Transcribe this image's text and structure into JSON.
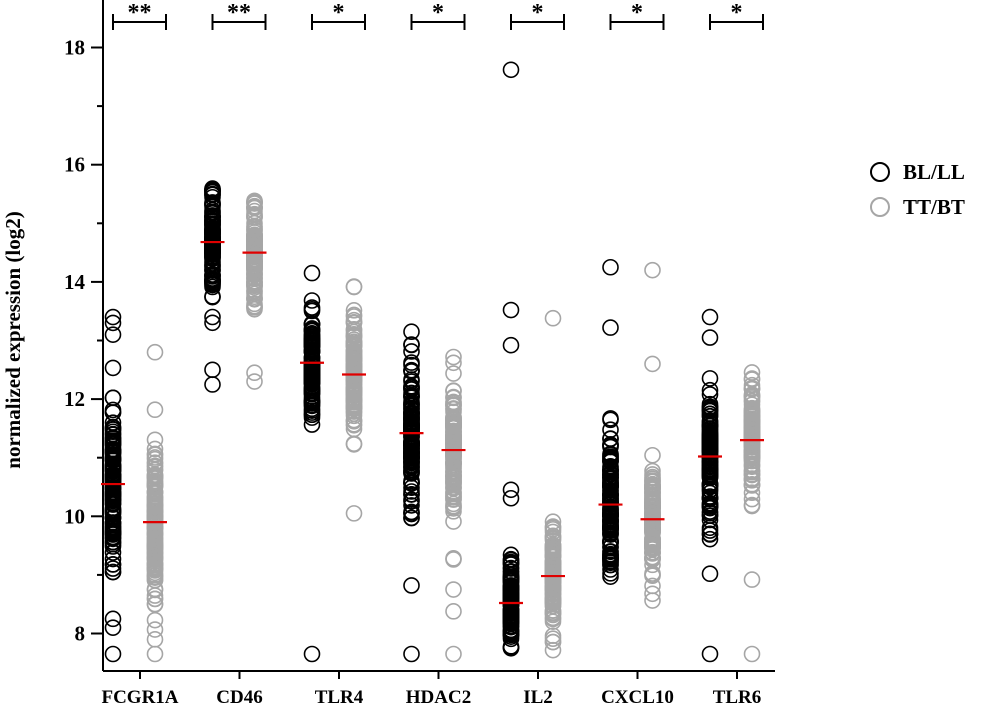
{
  "chart_data": {
    "type": "scatter",
    "title": "",
    "xlabel": "",
    "ylabel": "normalized expression (log2)",
    "ylim": [
      7.4,
      18.6
    ],
    "yticks": [
      8,
      10,
      12,
      14,
      16,
      18
    ],
    "ytick_labels": [
      "8",
      "10",
      "12",
      "14",
      "16",
      "18"
    ],
    "categories": [
      "FCGR1A",
      "CD46",
      "TLR4",
      "HDAC2",
      "IL2",
      "CXCL10",
      "TLR6"
    ],
    "significance": [
      "**",
      "**",
      "*",
      "*",
      "*",
      "*",
      "*"
    ],
    "legend": {
      "position": "right",
      "entries": [
        "BL/LL",
        "TT/BT"
      ]
    },
    "colors": {
      "BL/LL": "#000000",
      "TT/BT": "#a6a6a6",
      "median": "#e00000"
    },
    "series": [
      {
        "name": "BL/LL",
        "medians": [
          10.55,
          14.68,
          12.62,
          11.42,
          8.52,
          10.2,
          11.02
        ],
        "points": [
          {
            "min": 7.65,
            "max": 13.4,
            "outliers": [
              8.1,
              8.25,
              7.65,
              13.1,
              13.3,
              13.4
            ]
          },
          {
            "min": 12.25,
            "max": 15.62,
            "outliers": [
              12.25,
              12.5
            ]
          },
          {
            "min": 10.95,
            "max": 14.15,
            "outliers": [
              7.65,
              14.15
            ]
          },
          {
            "min": 8.82,
            "max": 13.15,
            "outliers": [
              7.65,
              8.82,
              13.15
            ]
          },
          {
            "min": 7.65,
            "max": 11.25,
            "outliers": [
              12.92,
              13.52,
              17.62
            ]
          },
          {
            "min": 7.65,
            "max": 12.7,
            "outliers": [
              13.22,
              14.25
            ]
          },
          {
            "min": 9.5,
            "max": 13.4,
            "outliers": [
              7.65,
              9.02,
              13.05,
              13.4
            ]
          }
        ]
      },
      {
        "name": "TT/BT",
        "medians": [
          9.9,
          14.5,
          12.42,
          11.13,
          8.98,
          9.95,
          11.3
        ],
        "points": [
          {
            "min": 7.65,
            "max": 12.8,
            "outliers": [
              7.65,
              7.9,
              12.8
            ]
          },
          {
            "min": 12.3,
            "max": 15.4,
            "outliers": [
              12.3,
              12.45
            ]
          },
          {
            "min": 10.05,
            "max": 13.92,
            "outliers": [
              10.05,
              13.92
            ]
          },
          {
            "min": 7.65,
            "max": 12.82,
            "outliers": [
              7.65,
              8.75
            ]
          },
          {
            "min": 7.65,
            "max": 11.02,
            "outliers": [
              13.38
            ]
          },
          {
            "min": 7.65,
            "max": 11.6,
            "outliers": [
              12.6,
              14.2
            ]
          },
          {
            "min": 8.95,
            "max": 12.7,
            "outliers": [
              7.65,
              8.92
            ]
          }
        ]
      }
    ]
  }
}
